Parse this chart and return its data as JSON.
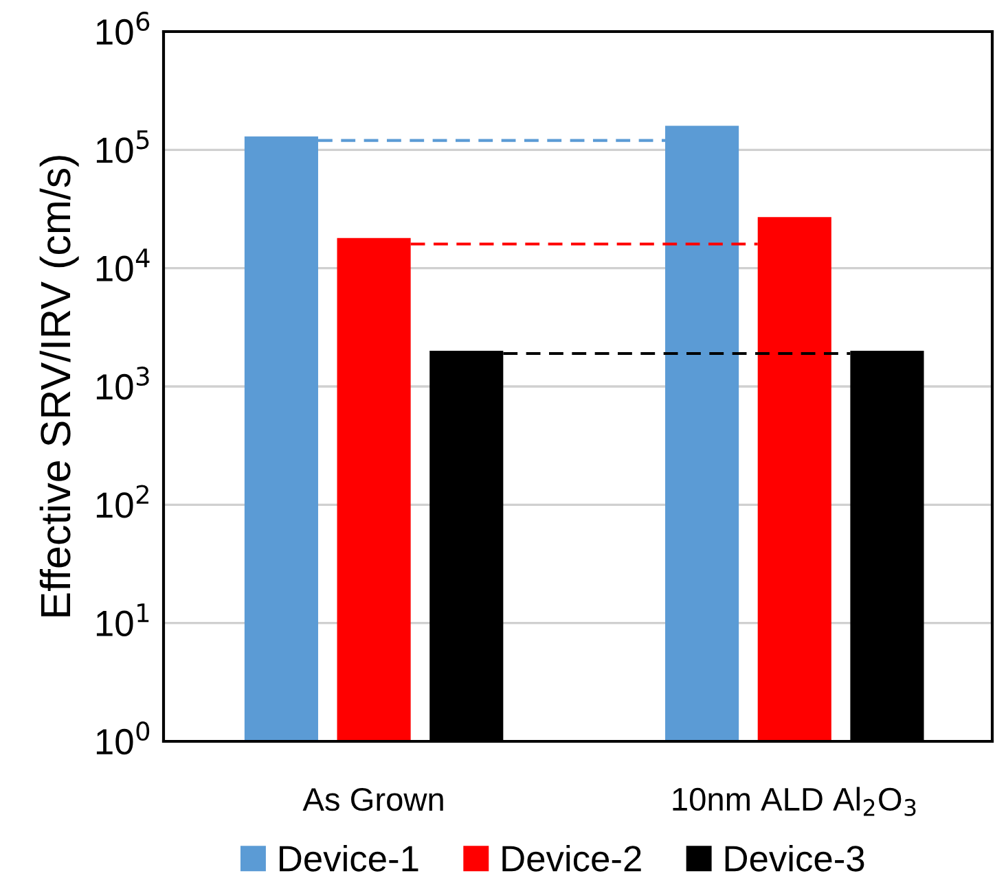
{
  "chart_data": {
    "type": "bar",
    "ylabel": "Effective SRV/IRV (cm/s)",
    "categories": [
      "As Grown",
      "10nm ALD Al$_{2}$O$_{3}$"
    ],
    "series": [
      {
        "name": "Device-1",
        "color": "#5b9bd5",
        "values": [
          130000,
          160000
        ]
      },
      {
        "name": "Device-2",
        "color": "#ff0000",
        "values": [
          18000,
          27000
        ]
      },
      {
        "name": "Device-3",
        "color": "#000000",
        "values": [
          2000,
          2000
        ]
      }
    ],
    "log": "y",
    "ylim": [
      1,
      1000000
    ],
    "yticks": [
      {
        "value": 1,
        "label": "10$^{0}$"
      },
      {
        "value": 10,
        "label": "10$^{1}$"
      },
      {
        "value": 100,
        "label": "10$^{2}$"
      },
      {
        "value": 1000,
        "label": "10$^{3}$"
      },
      {
        "value": 10000,
        "label": "10$^{4}$"
      },
      {
        "value": 100000,
        "label": "10$^{5}$"
      },
      {
        "value": 1000000,
        "label": "10$^{6}$"
      }
    ],
    "ref_lines": [
      {
        "axis": "y",
        "value": 120000,
        "color": "#5b9bd5",
        "line_style": "dashed"
      },
      {
        "axis": "y",
        "value": 16000,
        "color": "#ff0000",
        "line_style": "dashed"
      },
      {
        "axis": "y",
        "value": 1900,
        "color": "#000000",
        "line_style": "dashed"
      }
    ],
    "grid": "y",
    "legend": "bottom"
  }
}
